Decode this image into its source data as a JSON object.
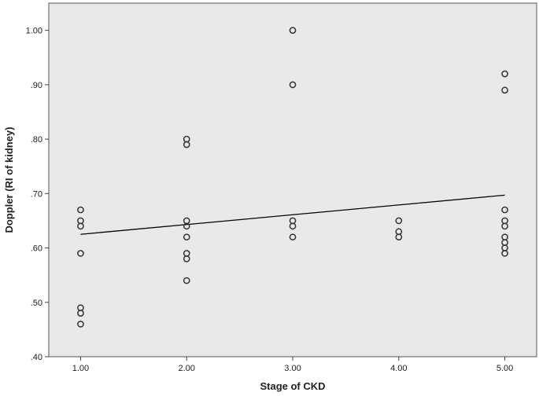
{
  "chart_data": {
    "type": "scatter",
    "title": "",
    "xlabel": "Stage of CKD",
    "ylabel": "Doppler (RI of kidney)",
    "xlim": [
      0.7,
      5.3
    ],
    "ylim": [
      0.4,
      1.05
    ],
    "x_ticks": [
      "1.00",
      "2.00",
      "3.00",
      "4.00",
      "5.00"
    ],
    "y_ticks": [
      ".40",
      ".50",
      ".60",
      ".70",
      ".80",
      ".90",
      "1.00"
    ],
    "grid": false,
    "legend": "none",
    "colors": {
      "background": "#e9e9e9",
      "marker": "#333333",
      "line": "#000000"
    },
    "points": [
      [
        1,
        0.67
      ],
      [
        1,
        0.65
      ],
      [
        1,
        0.64
      ],
      [
        1,
        0.59
      ],
      [
        1,
        0.49
      ],
      [
        1,
        0.48
      ],
      [
        1,
        0.46
      ],
      [
        2,
        0.8
      ],
      [
        2,
        0.79
      ],
      [
        2,
        0.65
      ],
      [
        2,
        0.64
      ],
      [
        2,
        0.62
      ],
      [
        2,
        0.59
      ],
      [
        2,
        0.58
      ],
      [
        2,
        0.54
      ],
      [
        3,
        1.0
      ],
      [
        3,
        0.9
      ],
      [
        3,
        0.65
      ],
      [
        3,
        0.64
      ],
      [
        3,
        0.62
      ],
      [
        4,
        0.65
      ],
      [
        4,
        0.63
      ],
      [
        4,
        0.62
      ],
      [
        5,
        0.92
      ],
      [
        5,
        0.89
      ],
      [
        5,
        0.67
      ],
      [
        5,
        0.65
      ],
      [
        5,
        0.64
      ],
      [
        5,
        0.62
      ],
      [
        5,
        0.61
      ],
      [
        5,
        0.6
      ],
      [
        5,
        0.59
      ]
    ],
    "fit_line": {
      "x": [
        1,
        5
      ],
      "y": [
        0.625,
        0.697
      ]
    }
  }
}
